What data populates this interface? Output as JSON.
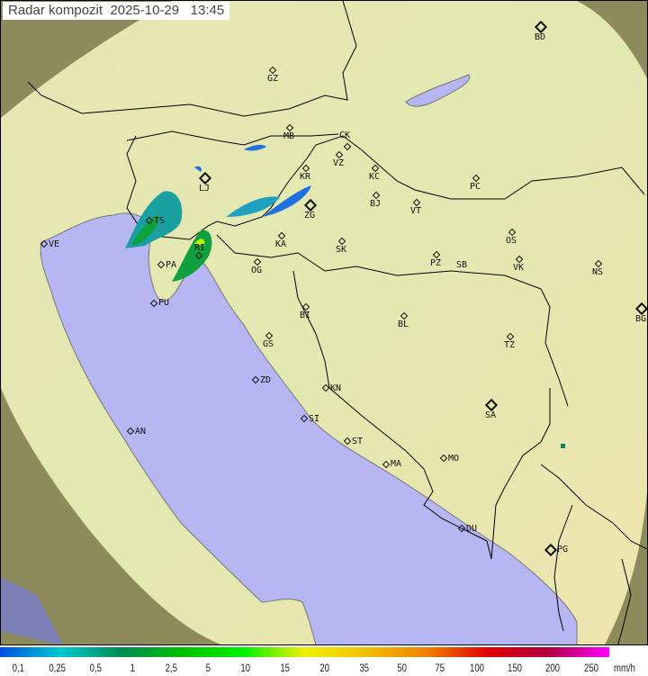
{
  "header": {
    "title": "Radar kompozit",
    "date": "2025-10-29",
    "time": "13:45"
  },
  "colors": {
    "sea": "#b6b6f2",
    "land_inside": "#e6e8b0",
    "land_outside": "#8f8a5a",
    "border": "#000000"
  },
  "cities": [
    "GZ",
    "MB",
    "CK",
    "VZ",
    "KR",
    "KC",
    "LJ",
    "ZG",
    "BJ",
    "VT",
    "PC",
    "BD",
    "TS",
    "VE",
    "KA",
    "SK",
    "OS",
    "VK",
    "NS",
    "BG",
    "RI",
    "PA",
    "OG",
    "PZ",
    "SB",
    "PU",
    "BI",
    "BL",
    "GS",
    "TZ",
    "ZD",
    "KN",
    "SA",
    "SI",
    "AN",
    "ST",
    "MA",
    "MO",
    "DU",
    "PG"
  ],
  "legend": {
    "values": [
      "0,1",
      "0,25",
      "0,5",
      "1",
      "2,5",
      "5",
      "10",
      "15",
      "20",
      "35",
      "50",
      "75",
      "100",
      "150",
      "200",
      "250"
    ],
    "unit": "mm/h",
    "colors": [
      "#0050e0",
      "#00c8d0",
      "#008c50",
      "#00c000",
      "#00f000",
      "#f0f000",
      "#f0c000",
      "#f08000",
      "#e00000",
      "#b00040",
      "#ff00ff"
    ]
  }
}
